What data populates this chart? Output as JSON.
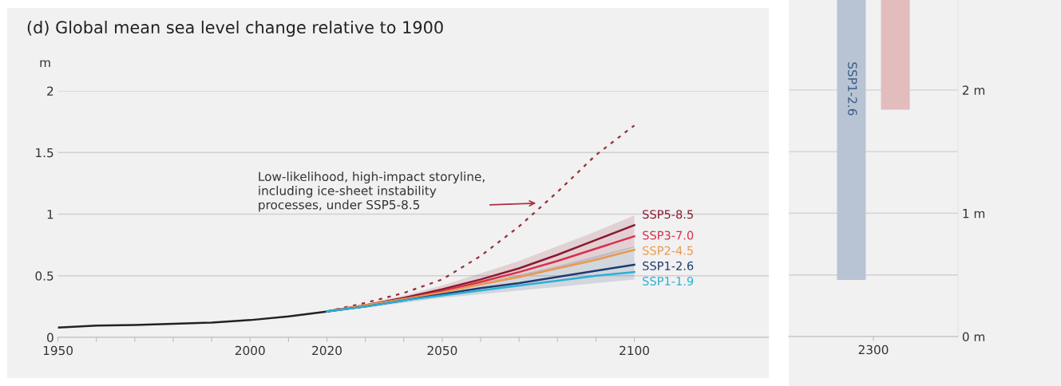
{
  "chart_data": [
    {
      "type": "line",
      "title": "(d) Global mean sea level change relative to 1900",
      "ylabel": "m",
      "xlim": [
        1950,
        2135
      ],
      "xticks": [
        1950,
        {
          "value": 1960,
          "label": null
        },
        {
          "value": 1970,
          "label": null
        },
        {
          "value": 1980,
          "label": null
        },
        {
          "value": 1990,
          "label": null
        },
        2000,
        {
          "value": 2010,
          "label": null
        },
        2020,
        {
          "value": 2030,
          "label": null
        },
        {
          "value": 2040,
          "label": null
        },
        2050,
        {
          "value": 2060,
          "label": null
        },
        {
          "value": 2070,
          "label": null
        },
        {
          "value": 2080,
          "label": null
        },
        {
          "value": 2090,
          "label": null
        },
        2100
      ],
      "ylim": [
        0,
        2
      ],
      "yticks": [
        0,
        0.5,
        1,
        1.5,
        2
      ],
      "grid": "y",
      "annotations": [
        {
          "text": "Low-likelihood, high-impact storyline,\nincluding ice-sheet instability\nprocesses, under SSP5-8.5",
          "x": 2075,
          "y": 1.09
        }
      ],
      "series": [
        {
          "color": "#222222",
          "x": [
            1950,
            1960,
            1970,
            1980,
            1990,
            2000,
            2010,
            2020
          ],
          "values": [
            0.08,
            0.095,
            0.1,
            0.11,
            0.12,
            0.14,
            0.17,
            0.21
          ]
        },
        {
          "color": "#9b2d3a",
          "line_style": "dotted",
          "x": [
            2020,
            2030,
            2040,
            2050,
            2060,
            2070,
            2080,
            2090,
            2100
          ],
          "values": [
            0.21,
            0.28,
            0.36,
            0.47,
            0.66,
            0.9,
            1.18,
            1.48,
            1.72
          ]
        },
        {
          "name": "SSP5-8.5",
          "color": "#8b1a2e",
          "x": [
            2020,
            2030,
            2040,
            2050,
            2060,
            2070,
            2080,
            2090,
            2100
          ],
          "values": [
            0.21,
            0.26,
            0.32,
            0.39,
            0.47,
            0.56,
            0.67,
            0.79,
            0.91
          ],
          "lower": [
            0.21,
            0.25,
            0.3,
            0.36,
            0.42,
            0.48,
            0.56,
            0.64,
            0.73
          ],
          "upper": [
            0.21,
            0.27,
            0.34,
            0.42,
            0.52,
            0.62,
            0.74,
            0.86,
            0.99
          ]
        },
        {
          "name": "SSP3-7.0",
          "color": "#d6304a",
          "x": [
            2020,
            2030,
            2040,
            2050,
            2060,
            2070,
            2080,
            2090,
            2100
          ],
          "values": [
            0.21,
            0.26,
            0.31,
            0.375,
            0.45,
            0.53,
            0.62,
            0.72,
            0.82
          ]
        },
        {
          "name": "SSP2-4.5",
          "color": "#e89a4f",
          "x": [
            2020,
            2030,
            2040,
            2050,
            2060,
            2070,
            2080,
            2090,
            2100
          ],
          "values": [
            0.21,
            0.26,
            0.31,
            0.365,
            0.43,
            0.49,
            0.56,
            0.63,
            0.71
          ]
        },
        {
          "name": "SSP1-2.6",
          "color": "#1f3a6e",
          "x": [
            2020,
            2030,
            2040,
            2050,
            2060,
            2070,
            2080,
            2090,
            2100
          ],
          "values": [
            0.21,
            0.25,
            0.3,
            0.35,
            0.4,
            0.44,
            0.49,
            0.54,
            0.59
          ],
          "lower": [
            0.21,
            0.24,
            0.28,
            0.32,
            0.35,
            0.38,
            0.41,
            0.44,
            0.47
          ],
          "upper": [
            0.21,
            0.26,
            0.31,
            0.37,
            0.44,
            0.51,
            0.58,
            0.66,
            0.74
          ]
        },
        {
          "name": "SSP1-1.9",
          "color": "#2bb0d8",
          "x": [
            2020,
            2030,
            2040,
            2050,
            2060,
            2070,
            2080,
            2090,
            2100
          ],
          "values": [
            0.21,
            0.25,
            0.3,
            0.34,
            0.38,
            0.42,
            0.46,
            0.5,
            0.53
          ]
        }
      ]
    },
    {
      "type": "bar",
      "categories": [
        "2300"
      ],
      "ylim": [
        0,
        2.73
      ],
      "yticks": [
        {
          "value": 0,
          "label": "0 m"
        },
        {
          "value": 0.5,
          "label": null
        },
        {
          "value": 1,
          "label": "1 m"
        },
        {
          "value": 1.5,
          "label": null
        },
        {
          "value": 2,
          "label": "2 m"
        }
      ],
      "grid": "y",
      "series": [
        {
          "name": "SSP1-2.6",
          "color": "#b8c4d4",
          "values": [
            2.27
          ],
          "base": [
            0.46
          ]
        },
        {
          "color": "#e3bcbd",
          "values": [
            0.89
          ],
          "base": [
            1.84
          ]
        }
      ]
    }
  ]
}
